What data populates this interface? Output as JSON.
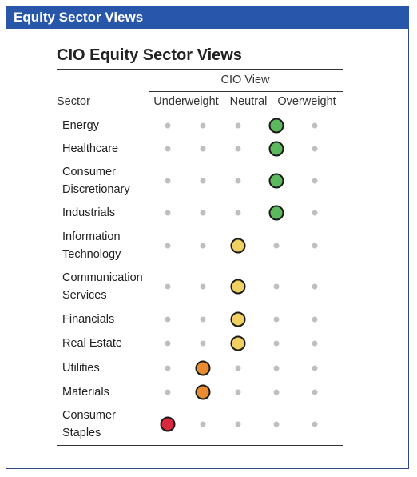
{
  "banner": {
    "title": "Equity Sector Views"
  },
  "table": {
    "title": "CIO Equity Sector Views",
    "group_header": "CIO View",
    "sector_header": "Sector",
    "view_headers": [
      "Underweight",
      "Neutral",
      "Overweight"
    ],
    "colors": {
      "overweight": "#5cb85c",
      "neutral": "#f0d060",
      "underweight_mild": "#e98c30",
      "underweight": "#d8293f",
      "empty": "#bfbfbf"
    },
    "rows": [
      {
        "sector": "Energy",
        "position": 4,
        "color": "overweight"
      },
      {
        "sector": "Healthcare",
        "position": 4,
        "color": "overweight"
      },
      {
        "sector": "Consumer\nDiscretionary",
        "position": 4,
        "color": "overweight"
      },
      {
        "sector": "Industrials",
        "position": 4,
        "color": "overweight"
      },
      {
        "sector": "Information\nTechnology",
        "position": 3,
        "color": "neutral"
      },
      {
        "sector": "Communication\nServices",
        "position": 3,
        "color": "neutral"
      },
      {
        "sector": "Financials",
        "position": 3,
        "color": "neutral"
      },
      {
        "sector": "Real Estate",
        "position": 3,
        "color": "neutral"
      },
      {
        "sector": "Utilities",
        "position": 2,
        "color": "underweight_mild"
      },
      {
        "sector": "Materials",
        "position": 2,
        "color": "underweight_mild"
      },
      {
        "sector": "Consumer\nStaples",
        "position": 1,
        "color": "underweight"
      }
    ]
  }
}
